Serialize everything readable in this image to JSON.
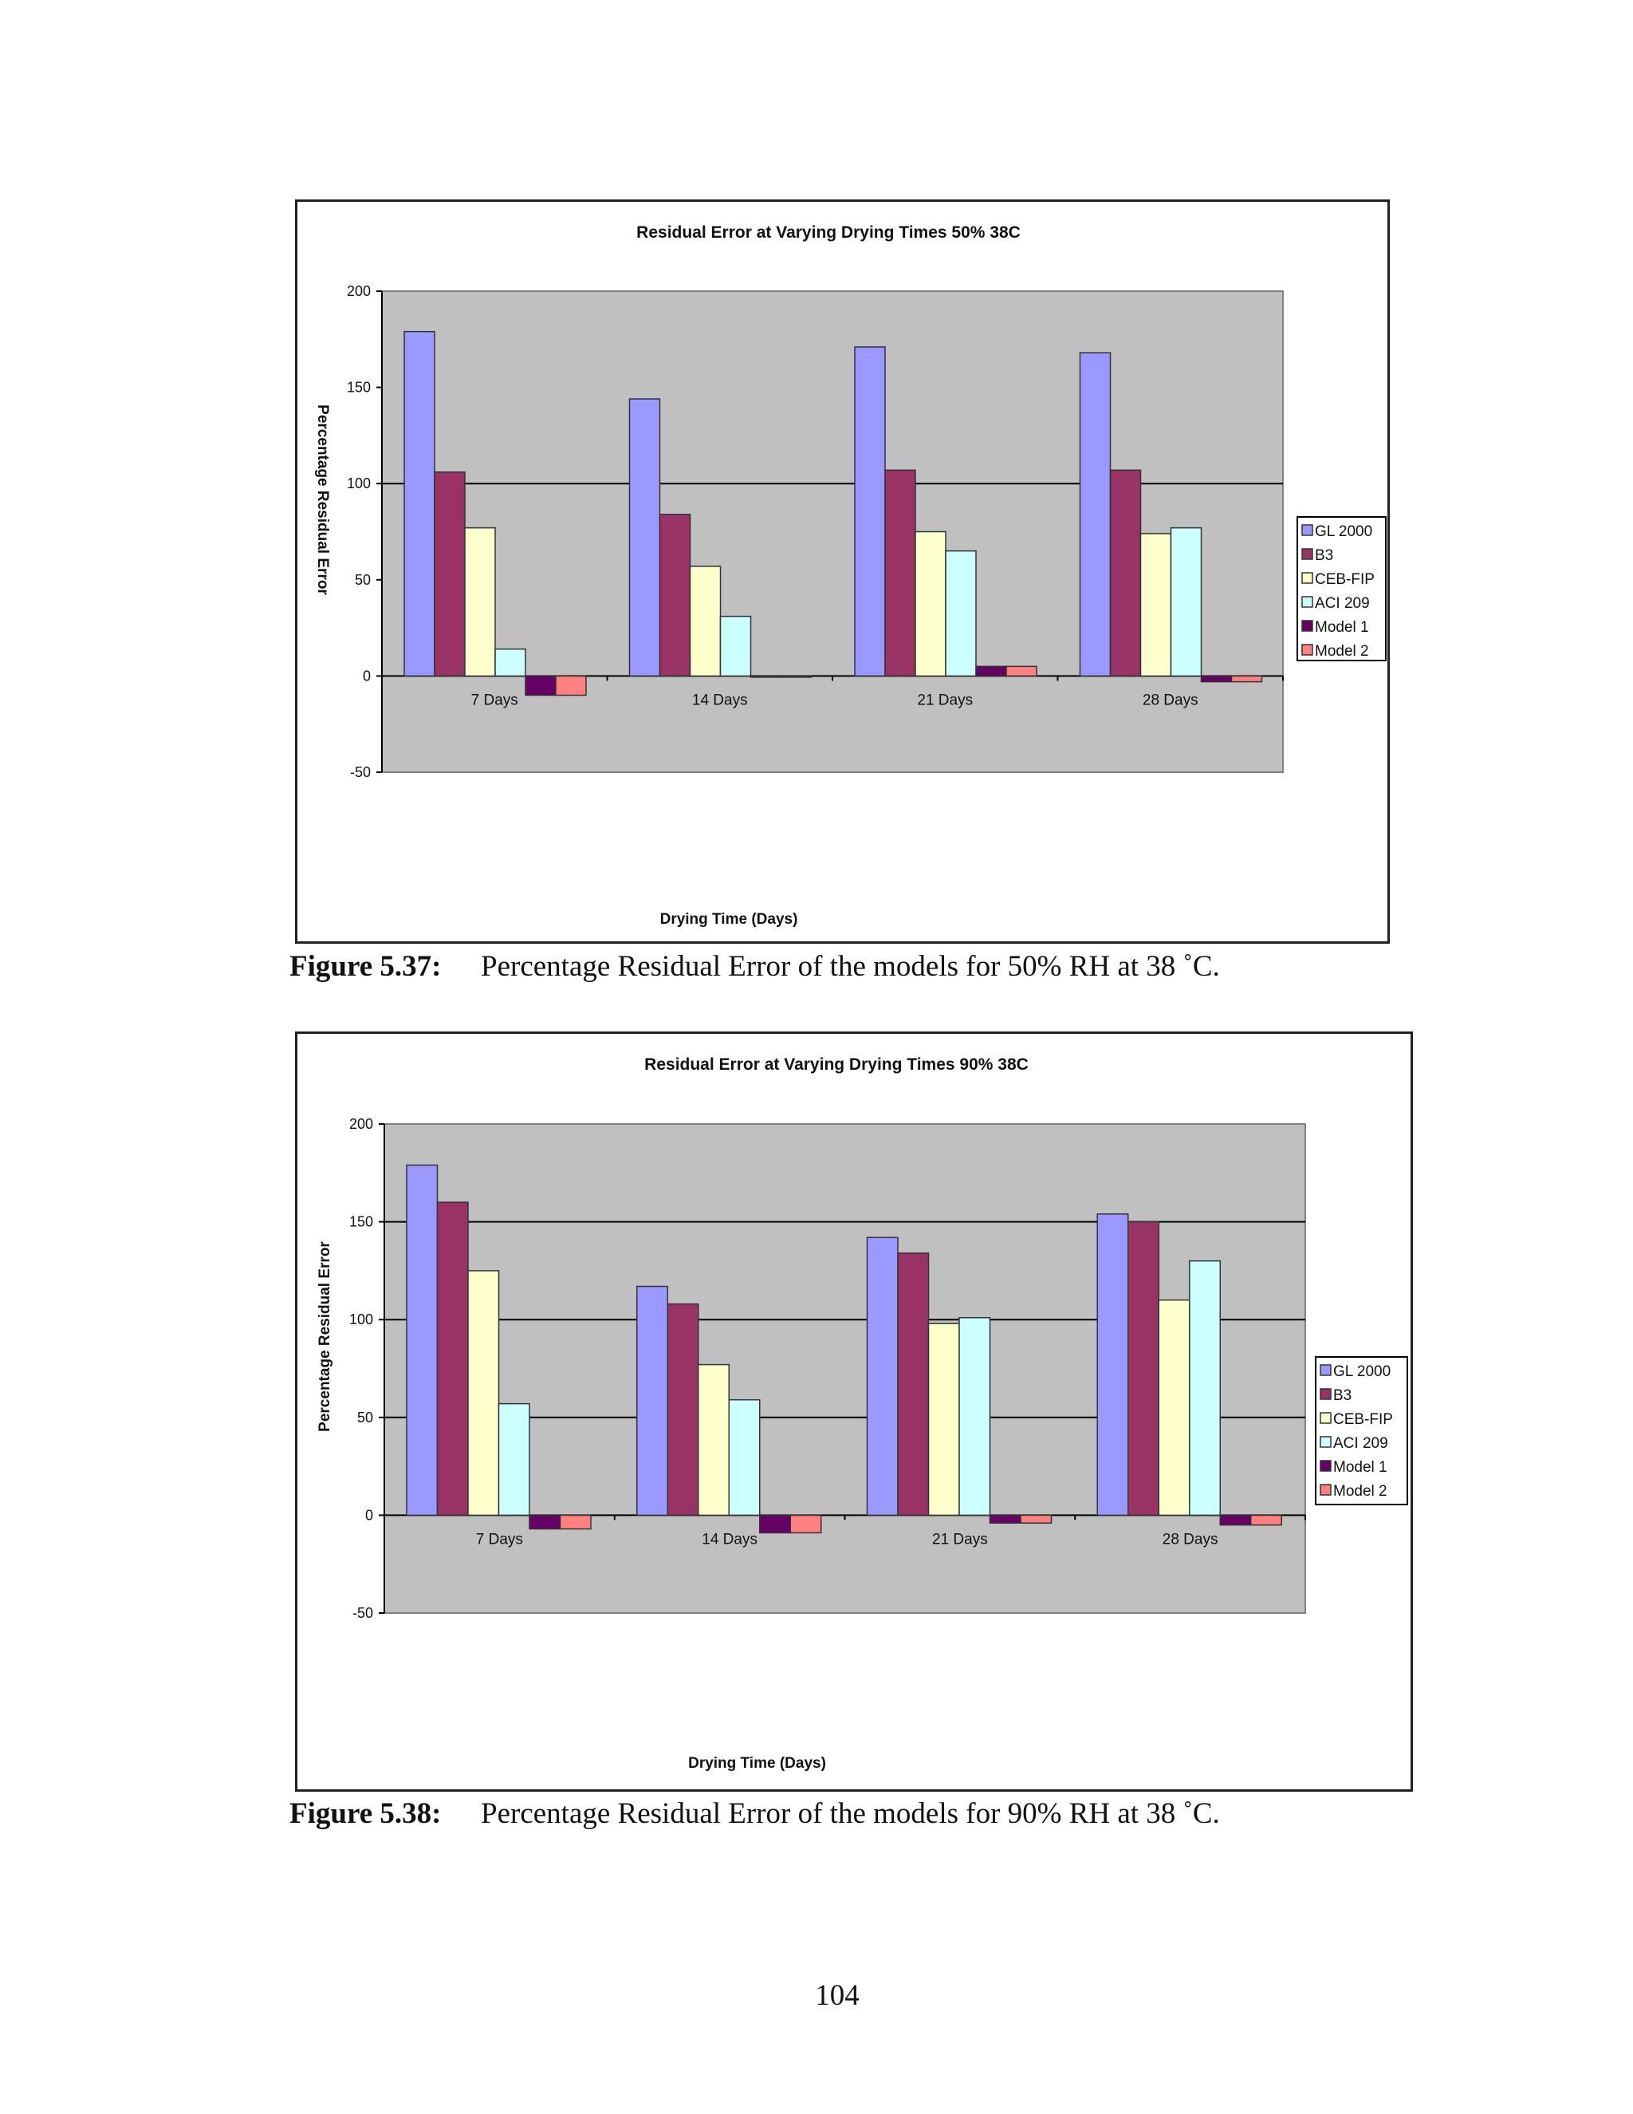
{
  "chart_data": [
    {
      "type": "bar",
      "title": "Residual Error at Varying Drying Times 50% 38C",
      "xlabel": "Drying Time (Days)",
      "ylabel": "Percentage Residual Error",
      "ylim": [
        -50,
        200
      ],
      "yticks": [
        -50,
        0,
        50,
        100,
        150,
        200
      ],
      "grid": "major y gridline at 100",
      "legend_position": "right",
      "categories": [
        "7 Days",
        "14 Days",
        "21 Days",
        "28 Days"
      ],
      "series": [
        {
          "name": "GL 2000",
          "color": "#9999ff",
          "values": [
            179,
            144,
            171,
            168
          ]
        },
        {
          "name": "B3",
          "color": "#993366",
          "values": [
            106,
            84,
            107,
            107
          ]
        },
        {
          "name": "CEB-FIP",
          "color": "#ffffcc",
          "values": [
            77,
            57,
            75,
            74
          ]
        },
        {
          "name": "ACI 209",
          "color": "#ccffff",
          "values": [
            14,
            31,
            65,
            77
          ]
        },
        {
          "name": "Model 1",
          "color": "#660066",
          "values": [
            -10,
            0,
            5,
            -3
          ]
        },
        {
          "name": "Model 2",
          "color": "#ff8080",
          "values": [
            -10,
            0,
            5,
            -3
          ]
        }
      ]
    },
    {
      "type": "bar",
      "title": "Residual Error at Varying Drying Times 90% 38C",
      "xlabel": "Drying Time (Days)",
      "ylabel": "Percentage Residual Error",
      "ylim": [
        -50,
        200
      ],
      "yticks": [
        -50,
        0,
        50,
        100,
        150,
        200
      ],
      "grid": "major y gridlines at 50, 100, 150",
      "legend_position": "right",
      "categories": [
        "7 Days",
        "14 Days",
        "21 Days",
        "28 Days"
      ],
      "series": [
        {
          "name": "GL 2000",
          "color": "#9999ff",
          "values": [
            179,
            117,
            142,
            154
          ]
        },
        {
          "name": "B3",
          "color": "#993366",
          "values": [
            160,
            108,
            134,
            150
          ]
        },
        {
          "name": "CEB-FIP",
          "color": "#ffffcc",
          "values": [
            125,
            77,
            98,
            110
          ]
        },
        {
          "name": "ACI 209",
          "color": "#ccffff",
          "values": [
            57,
            59,
            101,
            130
          ]
        },
        {
          "name": "Model 1",
          "color": "#660066",
          "values": [
            -7,
            -9,
            -4,
            -5
          ]
        },
        {
          "name": "Model 2",
          "color": "#ff8080",
          "values": [
            -7,
            -9,
            -4,
            -5
          ]
        }
      ]
    }
  ],
  "figures": [
    {
      "label": "Figure 5.37:",
      "text": "Percentage Residual Error of the models for 50% RH at 38 ˚C."
    },
    {
      "label": "Figure 5.38:",
      "text": "Percentage Residual Error of the models for 90% RH at 38 ˚C."
    }
  ],
  "page_number": "104"
}
